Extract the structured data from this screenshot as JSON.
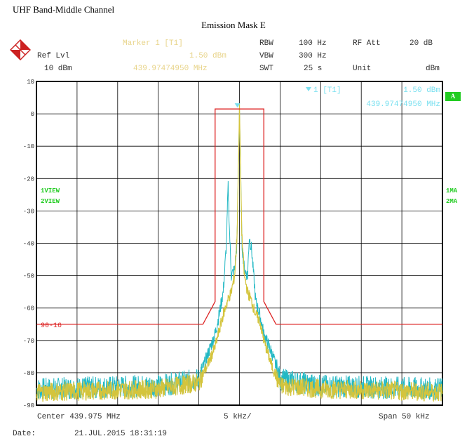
{
  "page_title": "UHF Band-Middle Channel",
  "header": {
    "marker_label": "Marker 1 [T1]",
    "marker_level": "1.50 dBm",
    "marker_freq": "439.97474950 MHz",
    "ref_lvl_label": "Ref Lvl",
    "ref_lvl_value": "10 dBm",
    "rbw_label": "RBW",
    "rbw_value": "100 Hz",
    "vbw_label": "VBW",
    "vbw_value": "300 Hz",
    "swt_label": "SWT",
    "swt_value": "25 s",
    "rf_att_label": "RF Att",
    "rf_att_value": "20 dB",
    "unit_label": "Unit",
    "unit_value": "dBm"
  },
  "plot_marker": {
    "label": "1 [T1]",
    "level": "1.50 dBm",
    "freq": "439.97474950 MHz"
  },
  "side_labels": {
    "left_1": "1VIEW",
    "left_2": "2VIEW",
    "right_1": "1MA",
    "right_2": "2MA",
    "badge": "A"
  },
  "footer": {
    "center": "Center 439.975 MHz",
    "per_div": "5 kHz/",
    "span": "Span 50 kHz",
    "date_label": "Date:",
    "date_value": "21.JUL.2015  18:31:19"
  },
  "colors": {
    "trace1": "#22b8c4",
    "trace2": "#d4c43c",
    "mask": "#dd2222",
    "marker": "#7ae0f0",
    "grid": "#000000"
  },
  "chart_data": {
    "type": "line",
    "title": "Emission Mask E",
    "xlabel": "",
    "ylabel": "",
    "xlim": [
      -25,
      25
    ],
    "ylim": [
      -90,
      10
    ],
    "x_unit": "kHz offset from center",
    "yticks": [
      "10",
      "0",
      "-10",
      "-20",
      "-30",
      "-40",
      "-50",
      "-60",
      "-70",
      "-80",
      "-90"
    ],
    "mask_label": "90-16",
    "mask": {
      "x": [
        -25,
        -4.5,
        -3,
        -3,
        3,
        3,
        4.5,
        25
      ],
      "y": [
        -65,
        -65,
        -58,
        1.5,
        1.5,
        -58,
        -65,
        -65
      ]
    },
    "series": [
      {
        "id": "trace1",
        "x": [
          -25,
          -10,
          -5,
          -4,
          -3,
          -2.5,
          -2,
          -1.6,
          -1.4,
          -1.2,
          -1,
          -0.6,
          -0.3,
          0,
          0.3,
          0.6,
          1,
          1.2,
          1.5,
          2,
          2.5,
          3,
          4,
          5,
          10,
          25
        ],
        "y": [
          -85,
          -84,
          -82,
          -75,
          -68,
          -62,
          -55,
          -40,
          -22,
          -38,
          -50,
          -48,
          -40,
          2,
          -40,
          -48,
          -50,
          -38,
          -42,
          -58,
          -62,
          -68,
          -74,
          -82,
          -84,
          -85
        ]
      },
      {
        "id": "trace2",
        "x": [
          -25,
          -10,
          -5,
          -4,
          -3,
          -2.5,
          -2,
          -1.5,
          -1,
          -0.6,
          -0.3,
          0,
          0.3,
          0.6,
          1,
          1.5,
          2,
          2.5,
          3,
          4,
          5,
          10,
          25
        ],
        "y": [
          -86,
          -85,
          -83,
          -78,
          -72,
          -67,
          -62,
          -58,
          -55,
          -50,
          -38,
          1.5,
          -38,
          -50,
          -55,
          -58,
          -62,
          -64,
          -70,
          -78,
          -84,
          -85,
          -86
        ]
      }
    ],
    "marker": {
      "x": -0.25,
      "y": 1.5,
      "label": "1 [T1]",
      "level": "1.50 dBm",
      "freq": "439.97474950 MHz"
    }
  }
}
